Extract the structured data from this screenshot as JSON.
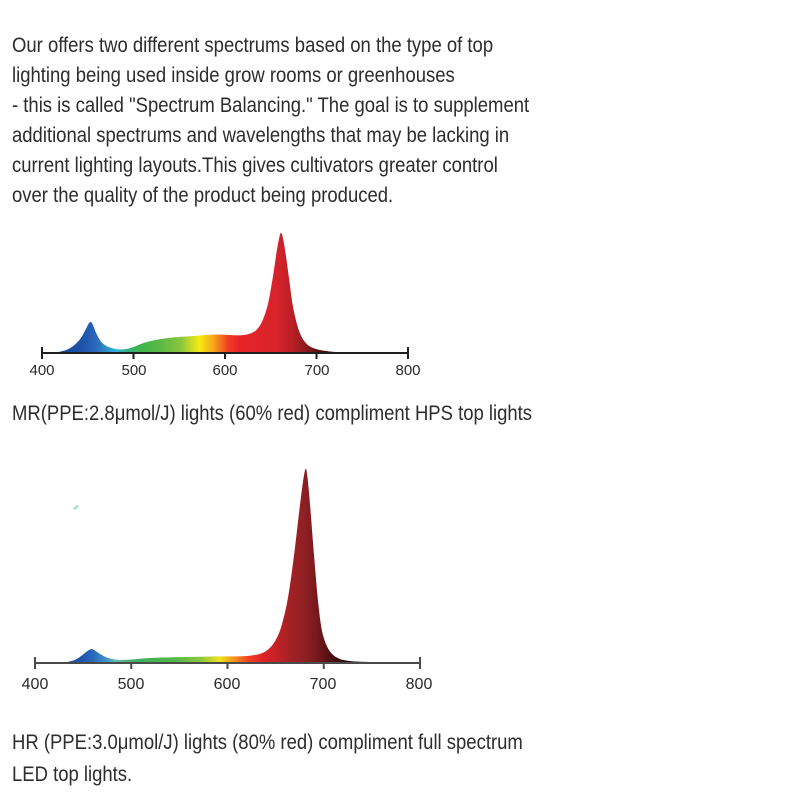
{
  "page": {
    "background": "#ffffff",
    "text_color": "#2d2d2d"
  },
  "intro": {
    "lines": [
      "Our offers two different spectrums based on the type of top",
      "lighting being used inside grow rooms or greenhouses",
      "- this is called \"Spectrum Balancing.\" The goal is to supplement",
      "additional spectrums and wavelengths that may be lacking in",
      "current lighting layouts.This gives cultivators greater control",
      "over the quality of the product being produced."
    ]
  },
  "chart_data": [
    {
      "type": "area",
      "xlim": [
        400,
        800
      ],
      "xticks": [
        "400",
        "500",
        "600",
        "700",
        "800"
      ],
      "axis_color": "#1f1f1f",
      "legend": "none",
      "grid": false,
      "peaks": [
        {
          "wavelength_nm": 453,
          "relative_intensity": 0.26,
          "band": "blue"
        },
        {
          "wavelength_nm": 661,
          "relative_intensity": 1.0,
          "band": "red"
        }
      ],
      "broad_band": {
        "from_nm": 500,
        "to_nm": 630,
        "relative_intensity": 0.15
      },
      "points": [
        [
          400,
          0
        ],
        [
          412,
          0.004
        ],
        [
          420,
          0.012
        ],
        [
          428,
          0.03
        ],
        [
          436,
          0.07
        ],
        [
          443,
          0.13
        ],
        [
          448,
          0.2
        ],
        [
          452,
          0.255
        ],
        [
          455,
          0.245
        ],
        [
          459,
          0.17
        ],
        [
          464,
          0.1
        ],
        [
          470,
          0.06
        ],
        [
          477,
          0.04
        ],
        [
          484,
          0.03
        ],
        [
          492,
          0.033
        ],
        [
          500,
          0.05
        ],
        [
          508,
          0.075
        ],
        [
          516,
          0.095
        ],
        [
          526,
          0.112
        ],
        [
          538,
          0.125
        ],
        [
          552,
          0.135
        ],
        [
          566,
          0.142
        ],
        [
          578,
          0.15
        ],
        [
          590,
          0.154
        ],
        [
          600,
          0.152
        ],
        [
          610,
          0.148
        ],
        [
          618,
          0.148
        ],
        [
          626,
          0.158
        ],
        [
          634,
          0.19
        ],
        [
          641,
          0.27
        ],
        [
          647,
          0.41
        ],
        [
          652,
          0.62
        ],
        [
          656,
          0.82
        ],
        [
          659,
          0.95
        ],
        [
          661,
          1.0
        ],
        [
          663,
          0.97
        ],
        [
          666,
          0.84
        ],
        [
          670,
          0.62
        ],
        [
          674,
          0.4
        ],
        [
          679,
          0.23
        ],
        [
          684,
          0.13
        ],
        [
          690,
          0.07
        ],
        [
          697,
          0.04
        ],
        [
          706,
          0.022
        ],
        [
          716,
          0.012
        ],
        [
          728,
          0.007
        ],
        [
          745,
          0.004
        ],
        [
          770,
          0.002
        ],
        [
          795,
          0.001
        ],
        [
          800,
          0
        ]
      ],
      "gradient": [
        [
          400,
          "#123c8a"
        ],
        [
          445,
          "#1e55ab"
        ],
        [
          458,
          "#2a67ba"
        ],
        [
          470,
          "#2f8cc9"
        ],
        [
          480,
          "#2fb3e0"
        ],
        [
          493,
          "#35b287"
        ],
        [
          506,
          "#3eb44d"
        ],
        [
          530,
          "#5cb944"
        ],
        [
          552,
          "#8cc63f"
        ],
        [
          572,
          "#f7ec13"
        ],
        [
          588,
          "#f7a11b"
        ],
        [
          604,
          "#ef3b24"
        ],
        [
          615,
          "#e92328"
        ],
        [
          655,
          "#d8232b"
        ],
        [
          672,
          "#bc2026"
        ],
        [
          688,
          "#8c1a1e"
        ],
        [
          703,
          "#55100f"
        ],
        [
          725,
          "#280707"
        ],
        [
          760,
          "#0e0303"
        ],
        [
          800,
          "#000000"
        ]
      ],
      "caption_lines": [
        "MR(PPE:2.8μmol/J) lights (60% red) compliment HPS top lights"
      ]
    },
    {
      "type": "area",
      "xlim": [
        400,
        800
      ],
      "xticks": [
        "400",
        "500",
        "600",
        "700",
        "800"
      ],
      "axis_color": "#4a4a4a",
      "legend": "none",
      "grid": false,
      "peaks": [
        {
          "wavelength_nm": 459,
          "relative_intensity": 0.07,
          "band": "blue"
        },
        {
          "wavelength_nm": 681,
          "relative_intensity": 1.0,
          "band": "deep-red"
        }
      ],
      "broad_band": {
        "from_nm": 500,
        "to_nm": 630,
        "relative_intensity": 0.035
      },
      "points": [
        [
          400,
          0
        ],
        [
          428,
          0.003
        ],
        [
          436,
          0.008
        ],
        [
          443,
          0.02
        ],
        [
          449,
          0.04
        ],
        [
          455,
          0.063
        ],
        [
          459,
          0.072
        ],
        [
          463,
          0.062
        ],
        [
          468,
          0.045
        ],
        [
          474,
          0.03
        ],
        [
          481,
          0.02
        ],
        [
          489,
          0.016
        ],
        [
          500,
          0.018
        ],
        [
          512,
          0.023
        ],
        [
          525,
          0.027
        ],
        [
          540,
          0.029
        ],
        [
          556,
          0.031
        ],
        [
          572,
          0.032
        ],
        [
          588,
          0.034
        ],
        [
          602,
          0.034
        ],
        [
          614,
          0.035
        ],
        [
          624,
          0.038
        ],
        [
          633,
          0.046
        ],
        [
          641,
          0.065
        ],
        [
          649,
          0.11
        ],
        [
          656,
          0.19
        ],
        [
          663,
          0.34
        ],
        [
          669,
          0.55
        ],
        [
          674,
          0.76
        ],
        [
          678,
          0.92
        ],
        [
          681,
          1.0
        ],
        [
          683,
          0.96
        ],
        [
          686,
          0.8
        ],
        [
          690,
          0.55
        ],
        [
          694,
          0.32
        ],
        [
          698,
          0.17
        ],
        [
          703,
          0.09
        ],
        [
          709,
          0.045
        ],
        [
          716,
          0.022
        ],
        [
          726,
          0.011
        ],
        [
          740,
          0.006
        ],
        [
          765,
          0.003
        ],
        [
          795,
          0.001
        ],
        [
          800,
          0
        ]
      ],
      "gradient": [
        [
          400,
          "#123c8a"
        ],
        [
          448,
          "#1e55ab"
        ],
        [
          460,
          "#2a67ba"
        ],
        [
          473,
          "#3f90c9"
        ],
        [
          484,
          "#63bbb0"
        ],
        [
          497,
          "#48b079"
        ],
        [
          515,
          "#3fb256"
        ],
        [
          545,
          "#52b747"
        ],
        [
          572,
          "#8cc63f"
        ],
        [
          592,
          "#eee31a"
        ],
        [
          608,
          "#f58c1e"
        ],
        [
          622,
          "#ef4123"
        ],
        [
          636,
          "#e02327"
        ],
        [
          650,
          "#c52127"
        ],
        [
          664,
          "#a52124"
        ],
        [
          680,
          "#8e2023"
        ],
        [
          692,
          "#7a191d"
        ],
        [
          706,
          "#521012"
        ],
        [
          724,
          "#2a0808"
        ],
        [
          760,
          "#0f0303"
        ],
        [
          800,
          "#000000"
        ]
      ],
      "caption_lines": [
        "HR (PPE:3.0μmol/J) lights (80% red) compliment full spectrum",
        "LED top lights."
      ]
    }
  ]
}
